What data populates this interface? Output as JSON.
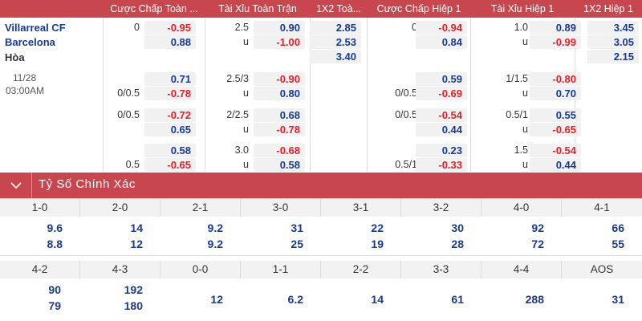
{
  "header": {
    "cols": [
      "Cược Chấp Toàn ...",
      "Tài Xỉu Toàn Trận",
      "1X2 Toà...",
      "Cược Chấp Hiệp 1",
      "Tài Xỉu Hiệp 1",
      "1X2 Hiệp 1"
    ]
  },
  "match": {
    "home": "Villarreal CF",
    "away": "Barcelona",
    "draw": "Hòa",
    "date": "11/28",
    "time": "03:00AM"
  },
  "rows": [
    {
      "ftah_line": "0",
      "ftah_a": "-0.95",
      "ftah_b": "0.88",
      "ftou_line": "2.5",
      "ftou_u": "u",
      "ftou_a": "0.90",
      "ftou_b": "-1.00",
      "ft1x2": [
        "2.85",
        "2.53",
        "3.40"
      ],
      "h1ah_line": "0",
      "h1ah_a": "-0.94",
      "h1ah_b": "0.84",
      "h1ou_line": "1.0",
      "h1ou_u": "u",
      "h1ou_a": "0.89",
      "h1ou_b": "-0.99",
      "h11x2": [
        "3.45",
        "3.05",
        "2.15"
      ]
    },
    {
      "ftah_line": "0/0.5",
      "ftah_a": "0.71",
      "ftah_b": "-0.78",
      "ftou_line": "2.5/3",
      "ftou_u": "u",
      "ftou_a": "-0.90",
      "ftou_b": "0.80",
      "h1ah_line": "0/0.5",
      "h1ah_a": "0.59",
      "h1ah_b": "-0.69",
      "h1ou_line": "1/1.5",
      "h1ou_u": "u",
      "h1ou_a": "-0.80",
      "h1ou_b": "0.70"
    },
    {
      "ftah_line": "0/0.5",
      "ftah_a": "-0.72",
      "ftah_b": "0.65",
      "ftou_line": "2/2.5",
      "ftou_u": "u",
      "ftou_a": "0.68",
      "ftou_b": "-0.78",
      "h1ah_line": "0/0.5",
      "h1ah_a": "-0.54",
      "h1ah_b": "0.44",
      "h1ou_line": "0.5/1",
      "h1ou_u": "u",
      "h1ou_a": "0.55",
      "h1ou_b": "-0.65"
    },
    {
      "ftah_line": "0.5",
      "ftah_a": "0.58",
      "ftah_b": "-0.65",
      "ftou_line": "3.0",
      "ftou_u": "u",
      "ftou_a": "-0.68",
      "ftou_b": "0.58",
      "h1ah_line": "0.5/1",
      "h1ah_a": "0.23",
      "h1ah_b": "-0.33",
      "h1ou_line": "1.5",
      "h1ou_u": "u",
      "h1ou_a": "-0.54",
      "h1ou_b": "0.44"
    }
  ],
  "section": {
    "title": "Tỷ Số Chính Xác"
  },
  "scores1": [
    {
      "s": "1-0",
      "a": "9.6",
      "b": "8.8"
    },
    {
      "s": "2-0",
      "a": "14",
      "b": "12"
    },
    {
      "s": "2-1",
      "a": "9.2",
      "b": "9.2"
    },
    {
      "s": "3-0",
      "a": "31",
      "b": "25"
    },
    {
      "s": "3-1",
      "a": "22",
      "b": "19"
    },
    {
      "s": "3-2",
      "a": "30",
      "b": "28"
    },
    {
      "s": "4-0",
      "a": "92",
      "b": "72"
    },
    {
      "s": "4-1",
      "a": "66",
      "b": "55"
    }
  ],
  "scores2": [
    {
      "s": "4-2",
      "a": "90",
      "b": "79"
    },
    {
      "s": "4-3",
      "a": "192",
      "b": "180"
    },
    {
      "s": "0-0",
      "a": "12"
    },
    {
      "s": "1-1",
      "a": "6.2"
    },
    {
      "s": "2-2",
      "a": "14"
    },
    {
      "s": "3-3",
      "a": "61"
    },
    {
      "s": "4-4",
      "a": "288"
    },
    {
      "s": "AOS",
      "a": "31"
    }
  ]
}
